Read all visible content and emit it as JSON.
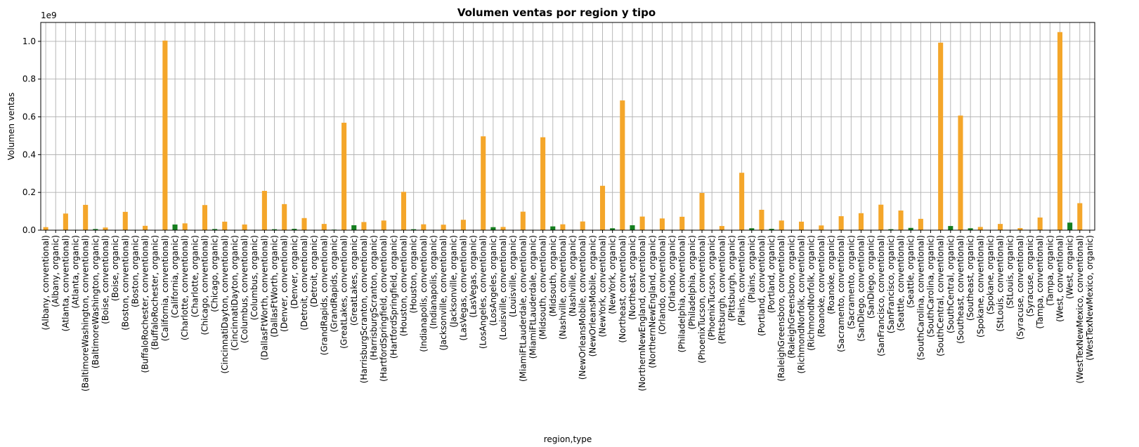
{
  "chart_data": {
    "type": "bar",
    "title": "Volumen ventas por region y tipo",
    "xlabel": "region,type",
    "ylabel": "Volumen ventas",
    "y_offset_text": "1e9",
    "ylim": [
      0,
      1.1
    ],
    "yticks": [
      0.0,
      0.2,
      0.4,
      0.6,
      0.8,
      1.0
    ],
    "grid": true,
    "colors": {
      "conventional": "#f4a62a",
      "organic": "#157f1f"
    },
    "categories": [
      "(Albany, conventional)",
      "(Albany, organic)",
      "(Atlanta, conventional)",
      "(Atlanta, organic)",
      "(BaltimoreWashington, conventional)",
      "(BaltimoreWashington, organic)",
      "(Boise, conventional)",
      "(Boise, organic)",
      "(Boston, conventional)",
      "(Boston, organic)",
      "(BuffaloRochester, conventional)",
      "(BuffaloRochester, organic)",
      "(California, conventional)",
      "(California, organic)",
      "(Charlotte, conventional)",
      "(Charlotte, organic)",
      "(Chicago, conventional)",
      "(Chicago, organic)",
      "(CincinnatiDayton, conventional)",
      "(CincinnatiDayton, organic)",
      "(Columbus, conventional)",
      "(Columbus, organic)",
      "(DallasFtWorth, conventional)",
      "(DallasFtWorth, organic)",
      "(Denver, conventional)",
      "(Denver, organic)",
      "(Detroit, conventional)",
      "(Detroit, organic)",
      "(GrandRapids, conventional)",
      "(GrandRapids, organic)",
      "(GreatLakes, conventional)",
      "(GreatLakes, organic)",
      "(HarrisburgScranton, conventional)",
      "(HarrisburgScranton, organic)",
      "(HartfordSpringfield, conventional)",
      "(HartfordSpringfield, organic)",
      "(Houston, conventional)",
      "(Houston, organic)",
      "(Indianapolis, conventional)",
      "(Indianapolis, organic)",
      "(Jacksonville, conventional)",
      "(Jacksonville, organic)",
      "(LasVegas, conventional)",
      "(LasVegas, organic)",
      "(LosAngeles, conventional)",
      "(LosAngeles, organic)",
      "(Louisville, conventional)",
      "(Louisville, organic)",
      "(MiamiFtLauderdale, conventional)",
      "(MiamiFtLauderdale, organic)",
      "(Midsouth, conventional)",
      "(Midsouth, organic)",
      "(Nashville, conventional)",
      "(Nashville, organic)",
      "(NewOrleansMobile, conventional)",
      "(NewOrleansMobile, organic)",
      "(NewYork, conventional)",
      "(NewYork, organic)",
      "(Northeast, conventional)",
      "(Northeast, organic)",
      "(NorthernNewEngland, conventional)",
      "(NorthernNewEngland, organic)",
      "(Orlando, conventional)",
      "(Orlando, organic)",
      "(Philadelphia, conventional)",
      "(Philadelphia, organic)",
      "(PhoenixTucson, conventional)",
      "(PhoenixTucson, organic)",
      "(Pittsburgh, conventional)",
      "(Pittsburgh, organic)",
      "(Plains, conventional)",
      "(Plains, organic)",
      "(Portland, conventional)",
      "(Portland, organic)",
      "(RaleighGreensboro, conventional)",
      "(RaleighGreensboro, organic)",
      "(RichmondNorfolk, conventional)",
      "(RichmondNorfolk, organic)",
      "(Roanoke, conventional)",
      "(Roanoke, organic)",
      "(Sacramento, conventional)",
      "(Sacramento, organic)",
      "(SanDiego, conventional)",
      "(SanDiego, organic)",
      "(SanFrancisco, conventional)",
      "(SanFrancisco, organic)",
      "(Seattle, conventional)",
      "(Seattle, organic)",
      "(SouthCarolina, conventional)",
      "(SouthCarolina, organic)",
      "(SouthCentral, conventional)",
      "(SouthCentral, organic)",
      "(Southeast, conventional)",
      "(Southeast, organic)",
      "(Spokane, conventional)",
      "(Spokane, organic)",
      "(StLouis, conventional)",
      "(StLouis, organic)",
      "(Syracuse, conventional)",
      "(Syracuse, organic)",
      "(Tampa, conventional)",
      "(Tampa, organic)",
      "(West, conventional)",
      "(West, organic)",
      "(WestTexNewMexico, conventional)",
      "(WestTexNewMexico, organic)"
    ],
    "values": [
      0.016,
      0.001,
      0.088,
      0.002,
      0.134,
      0.006,
      0.014,
      0.001,
      0.097,
      0.002,
      0.023,
      0.001,
      1.004,
      0.03,
      0.036,
      0.001,
      0.133,
      0.006,
      0.045,
      0.002,
      0.03,
      0.002,
      0.208,
      0.005,
      0.138,
      0.007,
      0.064,
      0.002,
      0.033,
      0.003,
      0.569,
      0.026,
      0.043,
      0.002,
      0.051,
      0.002,
      0.203,
      0.005,
      0.031,
      0.002,
      0.029,
      0.001,
      0.055,
      0.001,
      0.497,
      0.016,
      0.017,
      0.001,
      0.098,
      0.002,
      0.492,
      0.02,
      0.031,
      0.002,
      0.046,
      0.001,
      0.235,
      0.01,
      0.687,
      0.026,
      0.072,
      0.002,
      0.062,
      0.002,
      0.071,
      0.002,
      0.197,
      0.001,
      0.022,
      0.001,
      0.304,
      0.01,
      0.108,
      0.007,
      0.051,
      0.002,
      0.045,
      0.001,
      0.025,
      0.001,
      0.074,
      0.002,
      0.09,
      0.002,
      0.135,
      0.005,
      0.104,
      0.012,
      0.06,
      0.002,
      0.993,
      0.022,
      0.607,
      0.01,
      0.017,
      0.001,
      0.033,
      0.001,
      0.011,
      0.001,
      0.067,
      0.001,
      1.049,
      0.04,
      0.143,
      0.001
    ]
  }
}
